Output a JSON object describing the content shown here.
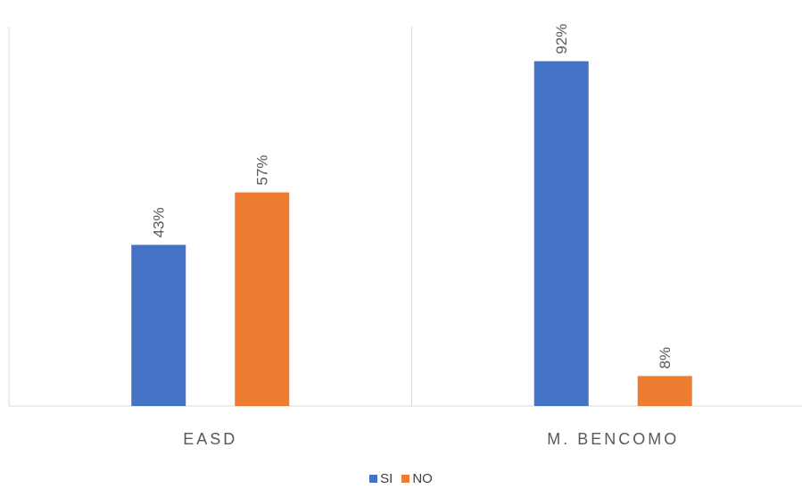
{
  "chart_data": {
    "type": "bar",
    "categories": [
      "EASD",
      "M. BENCOMO"
    ],
    "series": [
      {
        "name": "SI",
        "values": [
          43,
          92
        ],
        "labels": [
          "43%",
          "92%"
        ],
        "color": "#4472C4"
      },
      {
        "name": "NO",
        "values": [
          57,
          8
        ],
        "labels": [
          "57%",
          "8%"
        ],
        "color": "#ED7D31"
      }
    ],
    "ylim": [
      0,
      100
    ],
    "grid": false,
    "legend": "bottom"
  }
}
